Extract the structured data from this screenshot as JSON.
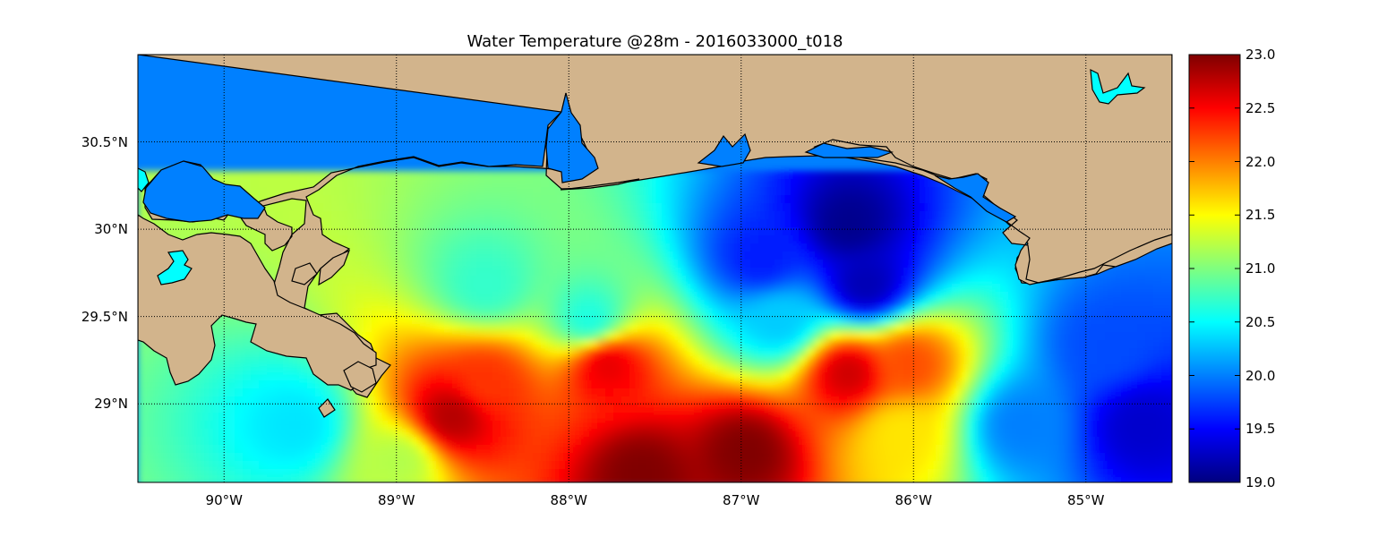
{
  "title": "Water Temperature @28m - 2016033000_t018",
  "map": {
    "lon_range": [
      -90.5,
      -84.5
    ],
    "lat_range": [
      28.55,
      31.0
    ],
    "grid": true,
    "land_color": "#d2b48c",
    "ocean_base_color": "#0080ff",
    "lake_color": "#00ffff",
    "coastline_color": "#000000"
  },
  "axes": {
    "y_ticks": [
      {
        "label": "30.5°N",
        "value": 30.5
      },
      {
        "label": "30°N",
        "value": 30.0
      },
      {
        "label": "29.5°N",
        "value": 29.5
      },
      {
        "label": "29°N",
        "value": 29.0
      }
    ],
    "x_ticks": [
      {
        "label": "90°W",
        "value": -90
      },
      {
        "label": "89°W",
        "value": -89
      },
      {
        "label": "88°W",
        "value": -88
      },
      {
        "label": "87°W",
        "value": -87
      },
      {
        "label": "86°W",
        "value": -86
      },
      {
        "label": "85°W",
        "value": -85
      }
    ]
  },
  "colorbar": {
    "min": 19.0,
    "max": 23.0,
    "colormap": "jet",
    "colormap_stops": [
      "#00007f",
      "#0000ff",
      "#007fff",
      "#00ffff",
      "#7fff7f",
      "#ffff00",
      "#ff7f00",
      "#ff0000",
      "#7f0000"
    ],
    "ticks": [
      "23.0",
      "22.5",
      "22.0",
      "21.5",
      "21.0",
      "20.5",
      "20.0",
      "19.5",
      "19.0"
    ]
  },
  "chart_data": {
    "type": "heatmap",
    "title": "Water Temperature @28m - 2016033000_t018",
    "xlabel": "",
    "ylabel": "",
    "xlim": [
      -90.5,
      -84.5
    ],
    "ylim": [
      28.55,
      31.0
    ],
    "vmin": 19.0,
    "vmax": 23.0,
    "features": [
      {
        "lon": -87.0,
        "lat": 28.75,
        "value": 23.0
      },
      {
        "lon": -87.6,
        "lat": 28.62,
        "value": 23.0
      },
      {
        "lon": -88.7,
        "lat": 28.95,
        "value": 22.8
      },
      {
        "lon": -88.5,
        "lat": 29.15,
        "value": 22.3
      },
      {
        "lon": -87.8,
        "lat": 29.25,
        "value": 22.6
      },
      {
        "lon": -86.4,
        "lat": 29.2,
        "value": 22.7
      },
      {
        "lon": -86.05,
        "lat": 29.25,
        "value": 22.2
      },
      {
        "lon": -86.1,
        "lat": 28.85,
        "value": 21.6
      },
      {
        "lon": -88.5,
        "lat": 29.7,
        "value": 20.7
      },
      {
        "lon": -87.9,
        "lat": 29.5,
        "value": 20.6
      },
      {
        "lon": -86.8,
        "lat": 29.5,
        "value": 20.3
      },
      {
        "lon": -89.6,
        "lat": 28.9,
        "value": 20.4
      },
      {
        "lon": -89.0,
        "lat": 28.7,
        "value": 21.2
      },
      {
        "lon": -86.4,
        "lat": 30.05,
        "value": 19.05
      },
      {
        "lon": -86.3,
        "lat": 29.7,
        "value": 19.2
      },
      {
        "lon": -86.9,
        "lat": 29.85,
        "value": 19.6
      },
      {
        "lon": -84.7,
        "lat": 28.9,
        "value": 19.3
      },
      {
        "lon": -85.4,
        "lat": 28.9,
        "value": 20.0
      },
      {
        "lon": -84.9,
        "lat": 29.35,
        "value": 19.8
      }
    ]
  }
}
